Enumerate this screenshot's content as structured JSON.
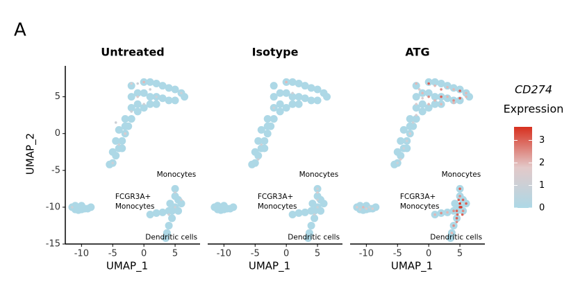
{
  "panel_label": "A",
  "colorbar": {
    "title": "CD274",
    "subtitle": "Expression",
    "lim": [
      0,
      3.6
    ],
    "ticks": [
      0,
      1,
      2,
      3
    ],
    "colors": [
      "#add8e6",
      "#e3c9c9",
      "#d7301f"
    ]
  },
  "chart_data": [
    {
      "type": "scatter",
      "title": "Untreated",
      "x_label": "UMAP_1",
      "y_label": "UMAP_2",
      "xlim": [
        -12.6,
        9
      ],
      "ylim": [
        -15,
        9.2
      ],
      "xticks": [
        -10,
        -5,
        0,
        5
      ],
      "yticks": [
        -15,
        -10,
        -5,
        0,
        5
      ],
      "annotations": [
        "Monocytes",
        "FCGR3A+",
        "Monocytes",
        "Dendritic cells"
      ],
      "series": [
        {
          "color": "#add8e6",
          "x": [
            -2,
            0,
            1,
            2,
            3,
            4,
            5,
            6,
            6.5,
            5,
            4,
            3,
            2,
            1,
            0,
            -1,
            -2,
            -1,
            0,
            1,
            2,
            -1,
            -2,
            -2.5,
            -3,
            -3.5,
            -4,
            -4.5,
            -5,
            -5.5,
            -3,
            -4,
            -4.5,
            -3,
            -2,
            -5,
            -3.5,
            -11.5,
            -11,
            -10.5,
            -10,
            -9.5,
            -9,
            -8.5,
            -11,
            -10,
            5,
            5,
            5.5,
            5,
            4.5,
            5.5,
            6,
            4,
            3,
            2,
            1,
            4.5,
            4,
            3.7,
            3.5,
            4.2
          ],
          "y": [
            6.5,
            7,
            7,
            6.8,
            6.5,
            6.2,
            6,
            5.5,
            5,
            4.5,
            4.5,
            4.8,
            5,
            5,
            5.5,
            5.5,
            5,
            4,
            3.5,
            4,
            4,
            3,
            2,
            1,
            0,
            -1,
            -2,
            -3,
            -4,
            -4.2,
            2,
            0.5,
            -1,
            1,
            3.5,
            -2.5,
            -2,
            -10,
            -10.3,
            -10.4,
            -10.3,
            -10.2,
            -10.2,
            -10,
            -9.8,
            -9.8,
            -7.5,
            -8.5,
            -9,
            -10,
            -10.5,
            -10.5,
            -9.5,
            -10.5,
            -10.7,
            -10.8,
            -11,
            -11.5,
            -12.5,
            -13.5,
            -14.2,
            -9.5
          ]
        },
        {
          "x": [
            -2,
            -1,
            0,
            1,
            -1,
            0,
            2,
            -2,
            -4.5,
            -3,
            -4,
            -5,
            6,
            5,
            5,
            6,
            -11.5,
            4
          ],
          "y": [
            6.8,
            6.8,
            7,
            6,
            5,
            4,
            5,
            3,
            1.5,
            0,
            -1.5,
            -4,
            5.5,
            -8,
            -10,
            -9,
            -10,
            -11
          ],
          "values": [
            1.5,
            1,
            2,
            1,
            1.5,
            1,
            1,
            1,
            1,
            1.5,
            1,
            1,
            1,
            1,
            1,
            1,
            1,
            1
          ]
        }
      ]
    },
    {
      "type": "scatter",
      "title": "Isotype",
      "x_label": "UMAP_1",
      "xlim": [
        -12.6,
        9
      ],
      "ylim": [
        -15,
        9.2
      ],
      "xticks": [
        -10,
        -5,
        0,
        5
      ],
      "annotations": [
        "Monocytes",
        "FCGR3A+",
        "Monocytes",
        "Dendritic cells"
      ],
      "series": [
        {
          "color": "#add8e6",
          "x": [
            -2,
            0,
            1,
            2,
            3,
            4,
            5,
            6,
            6.5,
            5,
            4,
            3,
            2,
            1,
            0,
            -1,
            -2,
            -1,
            0,
            1,
            2,
            -1,
            -2,
            -2.5,
            -3,
            -3.5,
            -4,
            -4.5,
            -5,
            -5.5,
            -3,
            -4,
            -4.5,
            -3,
            -2,
            -5,
            -3.5,
            -11.5,
            -11,
            -10.5,
            -10,
            -9.5,
            -9,
            -8.5,
            -11,
            -10,
            5,
            5,
            5.5,
            5,
            4.5,
            5.5,
            6,
            4,
            3,
            2,
            1,
            4.5,
            4,
            3.7,
            3.5,
            4.2
          ],
          "y": [
            6.5,
            7,
            7,
            6.8,
            6.5,
            6.2,
            6,
            5.5,
            5,
            4.5,
            4.5,
            4.8,
            5,
            5,
            5.5,
            5.5,
            5,
            4,
            3.5,
            4,
            4,
            3,
            2,
            1,
            0,
            -1,
            -2,
            -3,
            -4,
            -4.2,
            2,
            0.5,
            -1,
            1,
            3.5,
            -2.5,
            -2,
            -10,
            -10.3,
            -10.4,
            -10.3,
            -10.2,
            -10.2,
            -10,
            -9.8,
            -9.8,
            -7.5,
            -8.5,
            -9,
            -10,
            -10.5,
            -10.5,
            -9.5,
            -10.5,
            -10.7,
            -10.8,
            -11,
            -11.5,
            -12.5,
            -13.5,
            -14.2,
            -9.5
          ]
        },
        {
          "x": [
            0,
            1,
            -2,
            -4,
            -4.5,
            5,
            5,
            5,
            4.5,
            5
          ],
          "y": [
            7,
            5.5,
            3.5,
            -1.5,
            -3.5,
            -8,
            -9,
            -10,
            -11,
            -7.5
          ],
          "values": [
            2,
            1,
            1,
            1,
            1,
            1.5,
            1,
            1,
            1,
            1
          ]
        }
      ]
    },
    {
      "type": "scatter",
      "title": "ATG",
      "x_label": "UMAP_1",
      "xlim": [
        -12.6,
        9
      ],
      "ylim": [
        -15,
        9.2
      ],
      "xticks": [
        -10,
        -5,
        0,
        5
      ],
      "annotations": [
        "Monocytes",
        "FCGR3A+",
        "Monocytes",
        "Dendritic cells"
      ],
      "series": [
        {
          "color": "#add8e6",
          "x": [
            -2,
            0,
            1,
            2,
            3,
            4,
            5,
            6,
            6.5,
            5,
            4,
            3,
            2,
            1,
            0,
            -1,
            -2,
            -1,
            0,
            1,
            2,
            -1,
            -2,
            -2.5,
            -3,
            -3.5,
            -4,
            -4.5,
            -5,
            -5.5,
            -3,
            -4,
            -4.5,
            -3,
            -2,
            -5,
            -3.5,
            -11.5,
            -11,
            -10.5,
            -10,
            -9.5,
            -9,
            -8.5,
            -11,
            -10,
            5,
            5,
            5.5,
            5,
            4.5,
            5.5,
            6,
            4,
            3,
            2,
            1,
            4.5,
            4,
            3.7,
            3.5,
            4.2
          ],
          "y": [
            6.5,
            7,
            7,
            6.8,
            6.5,
            6.2,
            6,
            5.5,
            5,
            4.5,
            4.5,
            4.8,
            5,
            5,
            5.5,
            5.5,
            5,
            4,
            3.5,
            4,
            4,
            3,
            2,
            1,
            0,
            -1,
            -2,
            -3,
            -4,
            -4.2,
            2,
            0.5,
            -1,
            1,
            3.5,
            -2.5,
            -2,
            -10,
            -10.3,
            -10.4,
            -10.3,
            -10.2,
            -10.2,
            -10,
            -9.8,
            -9.8,
            -7.5,
            -8.5,
            -9,
            -10,
            -10.5,
            -10.5,
            -9.5,
            -10.5,
            -10.7,
            -10.8,
            -11,
            -11.5,
            -12.5,
            -13.5,
            -14.2,
            -9.5
          ]
        },
        {
          "x": [
            -2,
            -1.5,
            -1,
            0,
            1,
            2,
            3,
            4,
            5,
            6,
            -1,
            0,
            1,
            2,
            3,
            4,
            5,
            6,
            -2,
            0,
            2,
            4,
            -2.5,
            -3,
            -3.5,
            -4,
            -4.5,
            -5,
            -2,
            -11.5,
            -11,
            -10.5,
            -10,
            -9.5,
            -9,
            5,
            5,
            5.5,
            5,
            4.5,
            5.5,
            6,
            4,
            3,
            2,
            1,
            4.5,
            4,
            3.7,
            5,
            4.8,
            5.2,
            4.6,
            5.4,
            4.5
          ],
          "y": [
            6.8,
            6,
            5.5,
            6.8,
            6.5,
            6,
            6.3,
            6,
            5.8,
            5.5,
            4.8,
            5,
            4.5,
            5,
            5,
            4.5,
            4.8,
            5,
            4,
            4,
            4,
            4.2,
            1.5,
            0,
            -1,
            -2,
            -3.5,
            -4,
            2.5,
            -10,
            -10.3,
            -10,
            -10.2,
            -10,
            -10.2,
            -7.5,
            -8.5,
            -9,
            -10,
            -10.5,
            -10.5,
            -9.5,
            -10.5,
            -10.7,
            -10.8,
            -11,
            -11.5,
            -12.5,
            -13.5,
            -9.5,
            -9,
            -10,
            -11,
            -11,
            -12
          ],
          "values": [
            2,
            1.5,
            2,
            3,
            2,
            2.5,
            2,
            2,
            3,
            2,
            1.5,
            2.5,
            2,
            3,
            2,
            2.5,
            3,
            2,
            1.5,
            2,
            2,
            2,
            1,
            1.5,
            1,
            1,
            1.5,
            1,
            1.5,
            1.5,
            1,
            2,
            1.5,
            1,
            1.5,
            3,
            2.5,
            3,
            3.5,
            3,
            2.5,
            3,
            2.5,
            2,
            2.5,
            2,
            3,
            2.5,
            2,
            3.5,
            3,
            3.5,
            3,
            3,
            2.5
          ]
        }
      ]
    }
  ]
}
